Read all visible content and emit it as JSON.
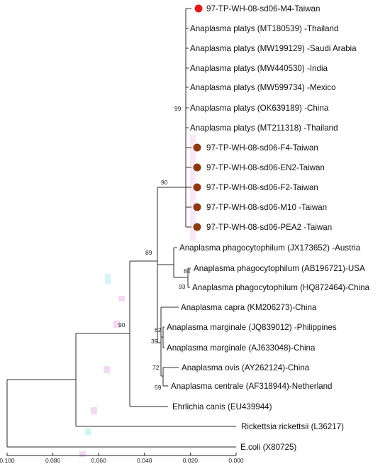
{
  "tree": {
    "taxa": [
      {
        "label": "97-TP-WH-08-sd06-M4-Taiwan",
        "marker": "red"
      },
      {
        "label": "Anaplasma platys (MT180539) -Thailand",
        "marker": null
      },
      {
        "label": "Anaplasma platys (MW199129) -Saudi Arabia",
        "marker": null
      },
      {
        "label": "Anaplasma platys (MW440530) -India",
        "marker": null
      },
      {
        "label": "Anaplasma platys (MW599734) -Mexico",
        "marker": null
      },
      {
        "label": "Anaplasma platys (OK639189) -China",
        "marker": null
      },
      {
        "label": "Anaplasma platys (MT211318) -Thailand",
        "marker": null
      },
      {
        "label": "97-TP-WH-08-sd06-F4-Taiwan",
        "marker": "brown"
      },
      {
        "label": "97-TP-WH-08-sd06-EN2-Taiwan",
        "marker": "brown"
      },
      {
        "label": "97-TP-WH-08-sd06-F2-Taiwan",
        "marker": "brown"
      },
      {
        "label": "97-TP-WH-08-sd06-M10 -Taiwan",
        "marker": "brown"
      },
      {
        "label": "97-TP-WH-08-sd06-PEA2 -Taiwan",
        "marker": "brown"
      },
      {
        "label": "Anaplasma phagocytophilum (JX173652) -Austria",
        "marker": null
      },
      {
        "label": "Anaplasma phagocytophilum (AB196721)-USA",
        "marker": null
      },
      {
        "label": "Anaplasma phagocytophilum (HQ872464)-China",
        "marker": null
      },
      {
        "label": "Anaplasma capra (KM206273)-China",
        "marker": null
      },
      {
        "label": "Anaplasma marginale (JQ839012) -Philippines",
        "marker": null
      },
      {
        "label": "Anaplasma marginale (AJ633048)-China",
        "marker": null
      },
      {
        "label": "Anaplasma ovis (AY262124)-China",
        "marker": null
      },
      {
        "label": "Anaplasma centrale (AF318944)-Netherland",
        "marker": null
      },
      {
        "label": "Ehrlichia canis (EU439944)",
        "marker": null
      },
      {
        "label": "Rickettsia rickettsii (L36217)",
        "marker": null
      },
      {
        "label": "E.coli (X80725)",
        "marker": null
      }
    ],
    "bootstrap": [
      "99",
      "90",
      "89",
      "84",
      "93",
      "90",
      "62",
      "39",
      "72",
      "59"
    ],
    "axis": {
      "ticks": [
        "0.100",
        "0.080",
        "0.060",
        "0.040",
        "0.020",
        "0.000"
      ],
      "range": [
        0.1,
        0.0
      ]
    },
    "marker_colors": {
      "red": "#e41a1c",
      "brown": "#8b3a0f"
    }
  }
}
